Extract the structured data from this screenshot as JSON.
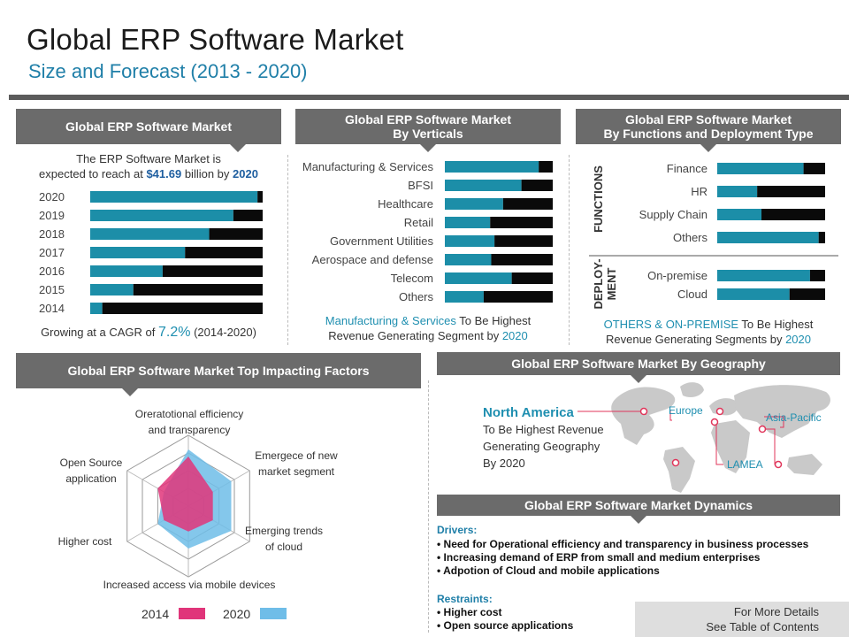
{
  "header": {
    "title": "Global ERP Software Market",
    "subtitle": "Size and Forecast (2013 - 2020)"
  },
  "panel1": {
    "heading": "Global ERP Software Market",
    "intro_line1": "The ERP Software Market is",
    "intro_line2_pre": "expected to reach at ",
    "intro_value": "$41.69",
    "intro_line2_mid": " billion by ",
    "intro_year": "2020",
    "cagr_pre": "Growing at a CAGR of ",
    "cagr_value": "7.2%",
    "cagr_post": " (2014-2020)"
  },
  "panel2": {
    "heading_line1": "Global ERP Software Market",
    "heading_line2": "By  Verticals",
    "note_highlight": "Manufacturing & Services",
    "note_line1_post": " To Be Highest",
    "note_line2_pre": "Revenue Generating Segment by ",
    "note_year": "2020"
  },
  "panel3": {
    "heading_line1": "Global ERP Software Market",
    "heading_line2": "By Functions and Deployment Type",
    "functions_label": "FUNCTIONS",
    "deploy_label_1": "DEPLOY-",
    "deploy_label_2": "MENT",
    "note_highlight": "OTHERS & ON-PREMISE",
    "note_line1_post": " To Be Highest",
    "note_line2_pre": "Revenue Generating Segments by ",
    "note_year": "2020"
  },
  "panel4": {
    "heading": "Global ERP Software Market  Top Impacting Factors"
  },
  "panel5": {
    "heading": "Global ERP Software Market By Geography",
    "region_highlight": "North America",
    "region_line1": "To Be Highest Revenue",
    "region_line2": "Generating Geography",
    "region_line3": "By 2020",
    "map_labels": [
      "Europe",
      "Asia-Pacific",
      "LAMEA"
    ]
  },
  "panel6": {
    "heading": "Global ERP Software Market Dynamics",
    "drivers_heading": "Drivers:",
    "drivers": [
      "• Need for Operational efficiency and transparency in business processes",
      "• Increasing demand of ERP from small and medium enterprises",
      "• Adpotion of Cloud and mobile applications"
    ],
    "restraints_heading": "Restraints:",
    "restraints": [
      "• Higher cost",
      "• Open source applications"
    ]
  },
  "footer": {
    "line1": "For More Details",
    "line2": "See Table of Contents"
  },
  "colors": {
    "teal": "#1c8ea8",
    "black": "#0a0a0a",
    "pink": "#e0357a",
    "light_blue": "#6fbde8",
    "header_gray": "#6b6b6b"
  },
  "chart_data": [
    {
      "type": "bar",
      "orientation": "horizontal",
      "stacked": true,
      "categories": [
        "2020",
        "2019",
        "2018",
        "2017",
        "2016",
        "2015",
        "2014"
      ],
      "series": [
        {
          "values": [
            97,
            83,
            69,
            55,
            42,
            25,
            7
          ],
          "color": "#1c8ea8"
        },
        {
          "values": [
            3,
            17,
            31,
            45,
            58,
            75,
            93
          ],
          "color": "#0a0a0a"
        }
      ],
      "ylim": [
        0,
        100
      ]
    },
    {
      "type": "bar",
      "orientation": "horizontal",
      "stacked": true,
      "categories": [
        "Manufacturing & Services",
        "BFSI",
        "Healthcare",
        "Retail",
        "Government Utilities",
        "Aerospace and defense",
        "Telecom",
        "Others"
      ],
      "series": [
        {
          "values": [
            87,
            71,
            54,
            42,
            46,
            43,
            62,
            36
          ],
          "color": "#1c8ea8"
        },
        {
          "values": [
            13,
            29,
            46,
            58,
            54,
            57,
            38,
            64
          ],
          "color": "#0a0a0a"
        }
      ],
      "ylim": [
        0,
        100
      ]
    },
    {
      "type": "bar",
      "orientation": "horizontal",
      "stacked": true,
      "groups": [
        "FUNCTIONS",
        "DEPLOYMENT"
      ],
      "categories": [
        "Finance",
        "HR",
        "Supply Chain",
        "Others",
        "On-premise",
        "Cloud"
      ],
      "series": [
        {
          "values": [
            80,
            37,
            41,
            94,
            86,
            67
          ],
          "color": "#1c8ea8"
        },
        {
          "values": [
            20,
            63,
            59,
            6,
            14,
            33
          ],
          "color": "#0a0a0a"
        }
      ],
      "ylim": [
        0,
        100
      ]
    },
    {
      "type": "radar",
      "axes": [
        "Oreratotional efficiency and transparency",
        "Emergece of new market segment",
        "Emerging trends of cloud",
        "Increased access via mobile devices",
        "Higher cost",
        "Open Source application"
      ],
      "series": [
        {
          "name": "2014",
          "values": [
            3.5,
            2,
            2,
            1.8,
            2,
            2.5
          ],
          "color": "#e0357a"
        },
        {
          "name": "2020",
          "values": [
            4,
            3.5,
            3.5,
            3,
            2.5,
            2
          ],
          "color": "#6fbde8"
        }
      ],
      "scale_max": 5,
      "grid_rings": 4,
      "legend": "bottom"
    }
  ]
}
